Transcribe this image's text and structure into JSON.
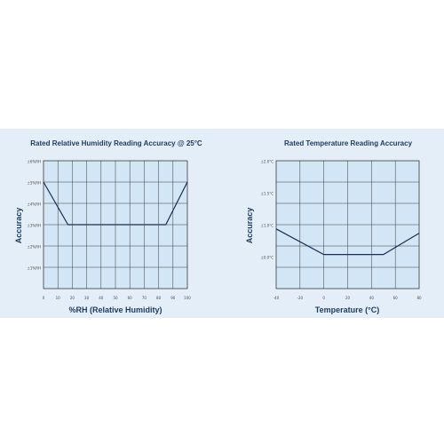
{
  "colors": {
    "band": "#e4eef8",
    "plot_bg": "#d2e6f5",
    "grid": "#3a3a3a",
    "line": "#1a2e52",
    "text": "#1e3a5f"
  },
  "chart_data": [
    {
      "type": "line",
      "title": "Rated Relative Humidity Reading Accuracy @ 25°C",
      "xlabel": "%RH (Relative Humidity)",
      "ylabel": "Accuracy",
      "xlim": [
        0,
        100
      ],
      "ylim": [
        0,
        6
      ],
      "x_ticks": [
        "0",
        "10",
        "20",
        "30",
        "40",
        "50",
        "60",
        "70",
        "80",
        "90",
        "100"
      ],
      "y_ticks": [
        "±1%RH",
        "±2%RH",
        "±3%RH",
        "±4%RH",
        "±5%RH",
        "±6%RH"
      ],
      "grid": true,
      "series": [
        {
          "x": [
            0,
            17,
            30,
            50,
            70,
            85,
            100
          ],
          "y": [
            5,
            3,
            3,
            3,
            3,
            3,
            5
          ]
        }
      ]
    },
    {
      "type": "line",
      "title": "Rated Temperature Reading Accuracy",
      "xlabel": "Temperature (°C)",
      "ylabel": "Accuracy",
      "xlim": [
        -40,
        80
      ],
      "ylim": [
        0,
        3
      ],
      "x_ticks": [
        "-40",
        "-20",
        "0",
        "20",
        "40",
        "60",
        "80"
      ],
      "y_ticks": [
        "±0.0°C",
        "±1.0°C",
        "±1.5°C",
        "±2.0°C"
      ],
      "grid": true,
      "series": [
        {
          "x": [
            -40,
            0,
            20,
            50,
            80
          ],
          "y": [
            1.4,
            0.8,
            0.8,
            0.8,
            1.3
          ]
        }
      ]
    }
  ]
}
